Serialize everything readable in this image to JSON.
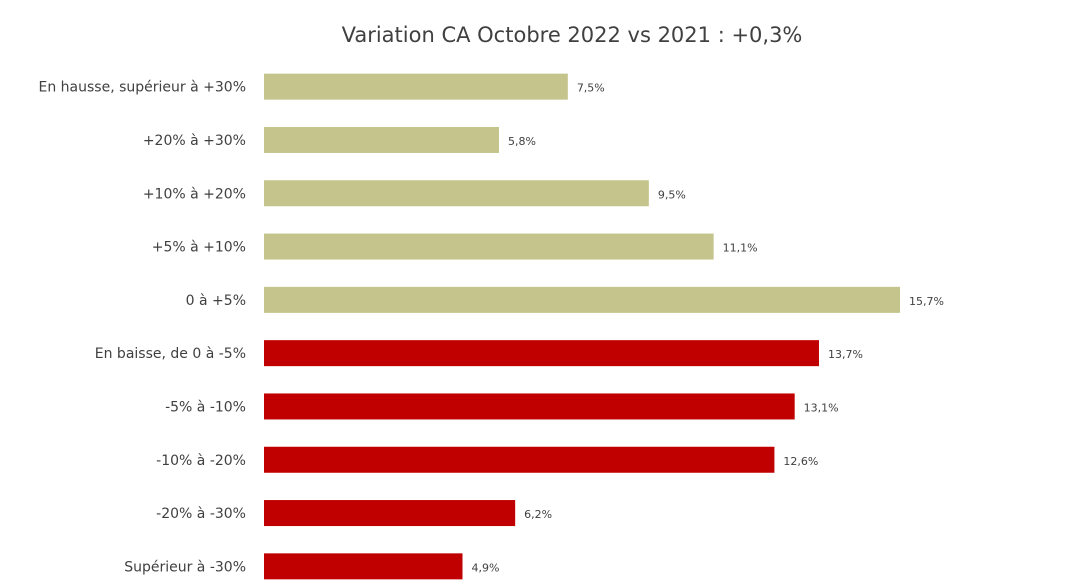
{
  "chart_data": {
    "type": "bar",
    "orientation": "horizontal",
    "title": "Variation CA Octobre 2022 vs 2021 : +0,3%",
    "categories": [
      "En hausse, supérieur à +30%",
      "+20% à +30%",
      "+10% à +20%",
      "+5% à +10%",
      "0 à +5%",
      "En baisse, de 0 à -5%",
      "-5% à -10%",
      "-10% à -20%",
      "-20% à -30%",
      "Supérieur à -30%"
    ],
    "values": [
      7.5,
      5.8,
      9.5,
      11.1,
      15.7,
      13.7,
      13.1,
      12.6,
      6.2,
      4.9
    ],
    "data_labels": [
      "7,5%",
      "5,8%",
      "9,5%",
      "11,1%",
      "15,7%",
      "13,7%",
      "13,1%",
      "12,6%",
      "6,2%",
      "4,9%"
    ],
    "bar_colors": [
      "#c4c48c",
      "#c4c48c",
      "#c4c48c",
      "#c4c48c",
      "#c4c48c",
      "#c00000",
      "#c00000",
      "#c00000",
      "#c00000",
      "#c00000"
    ],
    "xlim": [
      0,
      15.7
    ],
    "xlabel": "",
    "ylabel": "",
    "grid": false,
    "legend": "none"
  }
}
